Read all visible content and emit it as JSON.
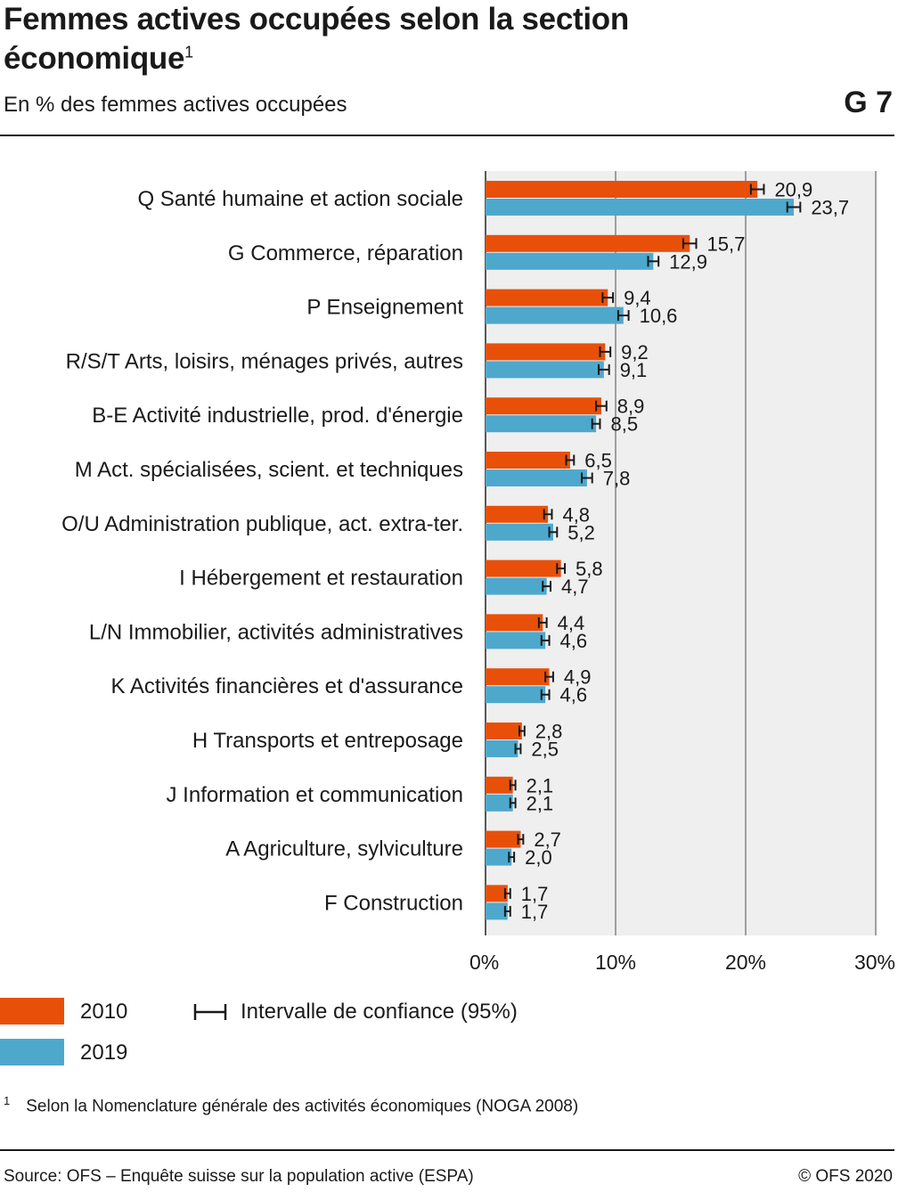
{
  "header": {
    "title": "Femmes actives occupées selon la section économique",
    "title_sup": "1",
    "subtitle": "En % des femmes actives occupées",
    "figure_number": "G 7"
  },
  "chart_data": {
    "type": "bar",
    "orientation": "horizontal",
    "categories": [
      "Q Santé humaine et action sociale",
      "G Commerce, réparation",
      "P Enseignement",
      "R/S/T Arts, loisirs, ménages privés, autres",
      "B-E Activité industrielle, prod. d'énergie",
      "M Act. spécialisées, scient. et techniques",
      "O/U Administration publique, act. extra-ter.",
      "I Hébergement et restauration",
      "L/N Immobilier, activités administratives",
      "K Activités financières et d'assurance",
      "H Transports et entreposage",
      "J Information et communication",
      "A Agriculture, sylviculture",
      "F Construction"
    ],
    "series": [
      {
        "name": "2010",
        "color": "#e8500a",
        "values": [
          20.9,
          15.7,
          9.4,
          9.2,
          8.9,
          6.5,
          4.8,
          5.8,
          4.4,
          4.9,
          2.8,
          2.1,
          2.7,
          1.7
        ],
        "labels": [
          "20,9",
          "15,7",
          "9,4",
          "9,2",
          "8,9",
          "6,5",
          "4,8",
          "5,8",
          "4,4",
          "4,9",
          "2,8",
          "2,1",
          "2,7",
          "1,7"
        ],
        "ci": [
          0.5,
          0.5,
          0.4,
          0.4,
          0.4,
          0.3,
          0.3,
          0.3,
          0.3,
          0.3,
          0.2,
          0.2,
          0.2,
          0.2
        ]
      },
      {
        "name": "2019",
        "color": "#4ea8cc",
        "values": [
          23.7,
          12.9,
          10.6,
          9.1,
          8.5,
          7.8,
          5.2,
          4.7,
          4.6,
          4.6,
          2.5,
          2.1,
          2.0,
          1.7
        ],
        "labels": [
          "23,7",
          "12,9",
          "10,6",
          "9,1",
          "8,5",
          "7,8",
          "5,2",
          "4,7",
          "4,6",
          "4,6",
          "2,5",
          "2,1",
          "2,0",
          "1,7"
        ],
        "ci": [
          0.5,
          0.4,
          0.4,
          0.4,
          0.3,
          0.4,
          0.3,
          0.3,
          0.3,
          0.3,
          0.2,
          0.2,
          0.2,
          0.2
        ]
      }
    ],
    "xlim": [
      0,
      30
    ],
    "xticks": [
      0,
      10,
      20,
      30
    ],
    "xtick_labels": [
      "0%",
      "10%",
      "20%",
      "30%"
    ],
    "grid": true,
    "legend_position": "bottom-left"
  },
  "legend": {
    "item_2010": "2010",
    "item_2019": "2019",
    "ci_label": "Intervalle de confiance (95%)"
  },
  "footnote": {
    "number": "1",
    "text": "Selon la Nomenclature générale des activités économiques (NOGA 2008)"
  },
  "footer": {
    "source": "Source: OFS – Enquête suisse sur la population active (ESPA)",
    "copyright": "© OFS 2020"
  }
}
